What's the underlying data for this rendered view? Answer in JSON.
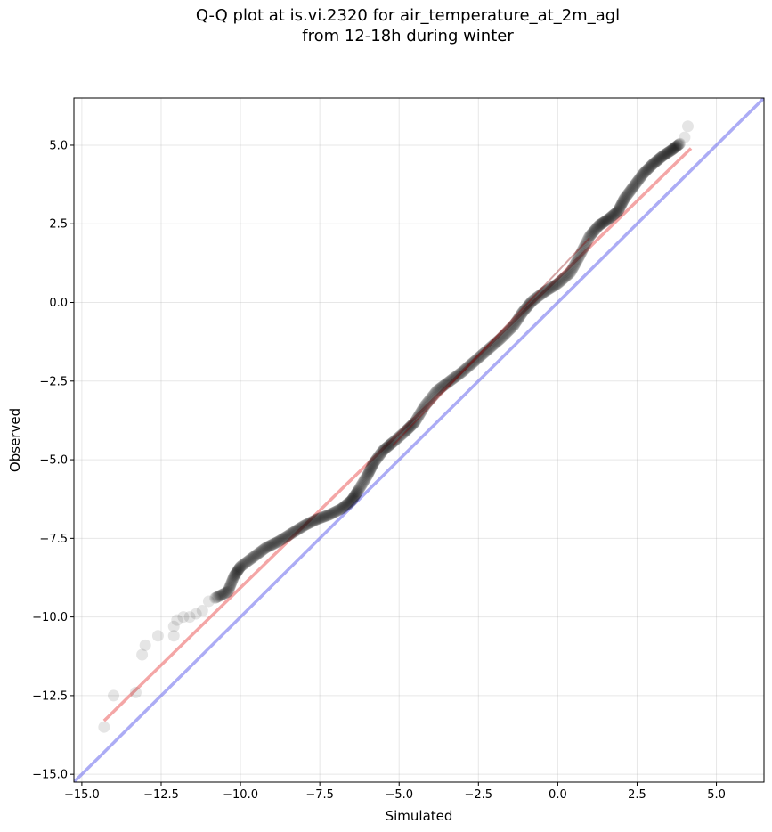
{
  "chart_data": {
    "type": "scatter",
    "title_line1": "Q-Q plot at is.vi.2320 for air_temperature_at_2m_agl",
    "title_line2": "from 12-18h during winter",
    "xlabel": "Simulated",
    "ylabel": "Observed",
    "xlim": [
      -15.25,
      6.5
    ],
    "ylim": [
      -15.25,
      6.5
    ],
    "xticks": [
      -15.0,
      -12.5,
      -10.0,
      -7.5,
      -5.0,
      -2.5,
      0.0,
      2.5,
      5.0
    ],
    "yticks": [
      -15.0,
      -12.5,
      -10.0,
      -7.5,
      -5.0,
      -2.5,
      0.0,
      2.5,
      5.0
    ],
    "xtick_labels": [
      "−15.0",
      "−12.5",
      "−10.0",
      "−7.5",
      "−5.0",
      "−2.5",
      "0.0",
      "2.5",
      "5.0"
    ],
    "ytick_labels": [
      "−15.0",
      "−12.5",
      "−10.0",
      "−7.5",
      "−5.0",
      "−2.5",
      "0.0",
      "2.5",
      "5.0"
    ],
    "grid": true,
    "colors": {
      "points": "#000000",
      "fit_line": "#f08080",
      "identity_line": "#8080f0"
    },
    "quantile_curve": [
      [
        -14.3,
        -13.5
      ],
      [
        -14.0,
        -12.5
      ],
      [
        -13.3,
        -12.4
      ],
      [
        -13.1,
        -11.2
      ],
      [
        -13.0,
        -10.9
      ],
      [
        -12.6,
        -10.6
      ],
      [
        -12.1,
        -10.6
      ],
      [
        -12.1,
        -10.3
      ],
      [
        -12.0,
        -10.1
      ],
      [
        -11.8,
        -10.0
      ],
      [
        -11.6,
        -10.0
      ],
      [
        -11.4,
        -9.9
      ],
      [
        -11.2,
        -9.8
      ],
      [
        -11.0,
        -9.5
      ],
      [
        -10.8,
        -9.4
      ],
      [
        -10.4,
        -9.2
      ],
      [
        -10.2,
        -8.7
      ],
      [
        -10.0,
        -8.4
      ],
      [
        -9.6,
        -8.1
      ],
      [
        -9.2,
        -7.8
      ],
      [
        -8.8,
        -7.6
      ],
      [
        -8.4,
        -7.35
      ],
      [
        -8.0,
        -7.1
      ],
      [
        -7.6,
        -6.9
      ],
      [
        -7.2,
        -6.75
      ],
      [
        -6.8,
        -6.55
      ],
      [
        -6.5,
        -6.3
      ],
      [
        -6.3,
        -6.0
      ],
      [
        -6.0,
        -5.5
      ],
      [
        -5.8,
        -5.1
      ],
      [
        -5.5,
        -4.7
      ],
      [
        -5.2,
        -4.45
      ],
      [
        -4.8,
        -4.1
      ],
      [
        -4.5,
        -3.8
      ],
      [
        -4.2,
        -3.3
      ],
      [
        -3.8,
        -2.8
      ],
      [
        -3.4,
        -2.5
      ],
      [
        -3.0,
        -2.2
      ],
      [
        -2.6,
        -1.85
      ],
      [
        -2.2,
        -1.5
      ],
      [
        -1.8,
        -1.15
      ],
      [
        -1.4,
        -0.75
      ],
      [
        -1.1,
        -0.3
      ],
      [
        -0.8,
        0.05
      ],
      [
        -0.4,
        0.35
      ],
      [
        0.0,
        0.6
      ],
      [
        0.4,
        0.95
      ],
      [
        0.7,
        1.5
      ],
      [
        1.0,
        2.1
      ],
      [
        1.3,
        2.45
      ],
      [
        1.6,
        2.65
      ],
      [
        1.9,
        2.9
      ],
      [
        2.1,
        3.3
      ],
      [
        2.4,
        3.7
      ],
      [
        2.7,
        4.1
      ],
      [
        3.0,
        4.4
      ],
      [
        3.3,
        4.65
      ],
      [
        3.6,
        4.85
      ],
      [
        3.85,
        5.05
      ],
      [
        4.0,
        5.25
      ],
      [
        4.1,
        5.6
      ]
    ],
    "fit_line": [
      [
        -14.3,
        -13.3
      ],
      [
        4.2,
        4.9
      ]
    ],
    "identity_line": [
      [
        -15.25,
        -15.25
      ],
      [
        6.5,
        6.5
      ]
    ]
  }
}
